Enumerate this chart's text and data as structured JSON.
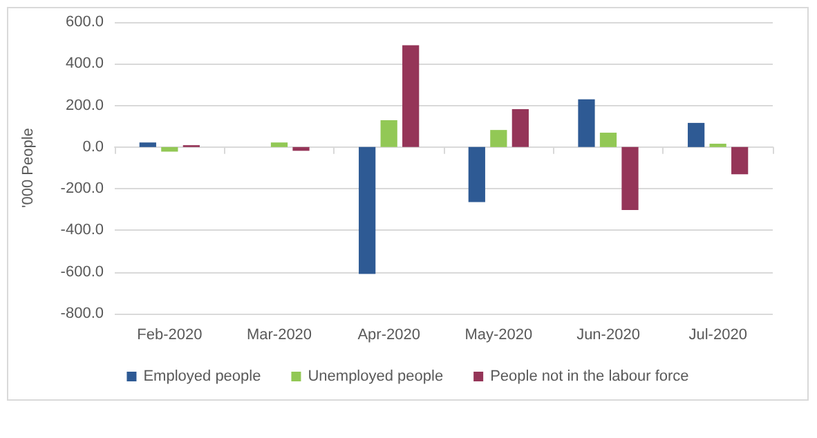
{
  "chart_data": {
    "type": "bar",
    "ylabel": "'000 People",
    "categories": [
      "Feb-2020",
      "Mar-2020",
      "Apr-2020",
      "May-2020",
      "Jun-2020",
      "Jul-2020"
    ],
    "series": [
      {
        "name": "Employed people",
        "color": "#2e5a94",
        "values": [
          22,
          0,
          -609,
          -264,
          229,
          116
        ]
      },
      {
        "name": "Unemployed people",
        "color": "#92c855",
        "values": [
          -22,
          22,
          129,
          82,
          69,
          16
        ]
      },
      {
        "name": "People not in the labour force",
        "color": "#953558",
        "values": [
          9,
          -18,
          489,
          182,
          -302,
          -131
        ]
      }
    ],
    "ylim": [
      -800,
      600
    ],
    "yticks": [
      {
        "value": -800,
        "label": "-800.0"
      },
      {
        "value": -600,
        "label": "-600.0"
      },
      {
        "value": -400,
        "label": "-400.0"
      },
      {
        "value": -200,
        "label": "-200.0"
      },
      {
        "value": 0,
        "label": "0.0"
      },
      {
        "value": 200,
        "label": "200.0"
      },
      {
        "value": 400,
        "label": "400.0"
      },
      {
        "value": 600,
        "label": "600.0"
      }
    ],
    "grid": "y",
    "legend": "bottom"
  }
}
